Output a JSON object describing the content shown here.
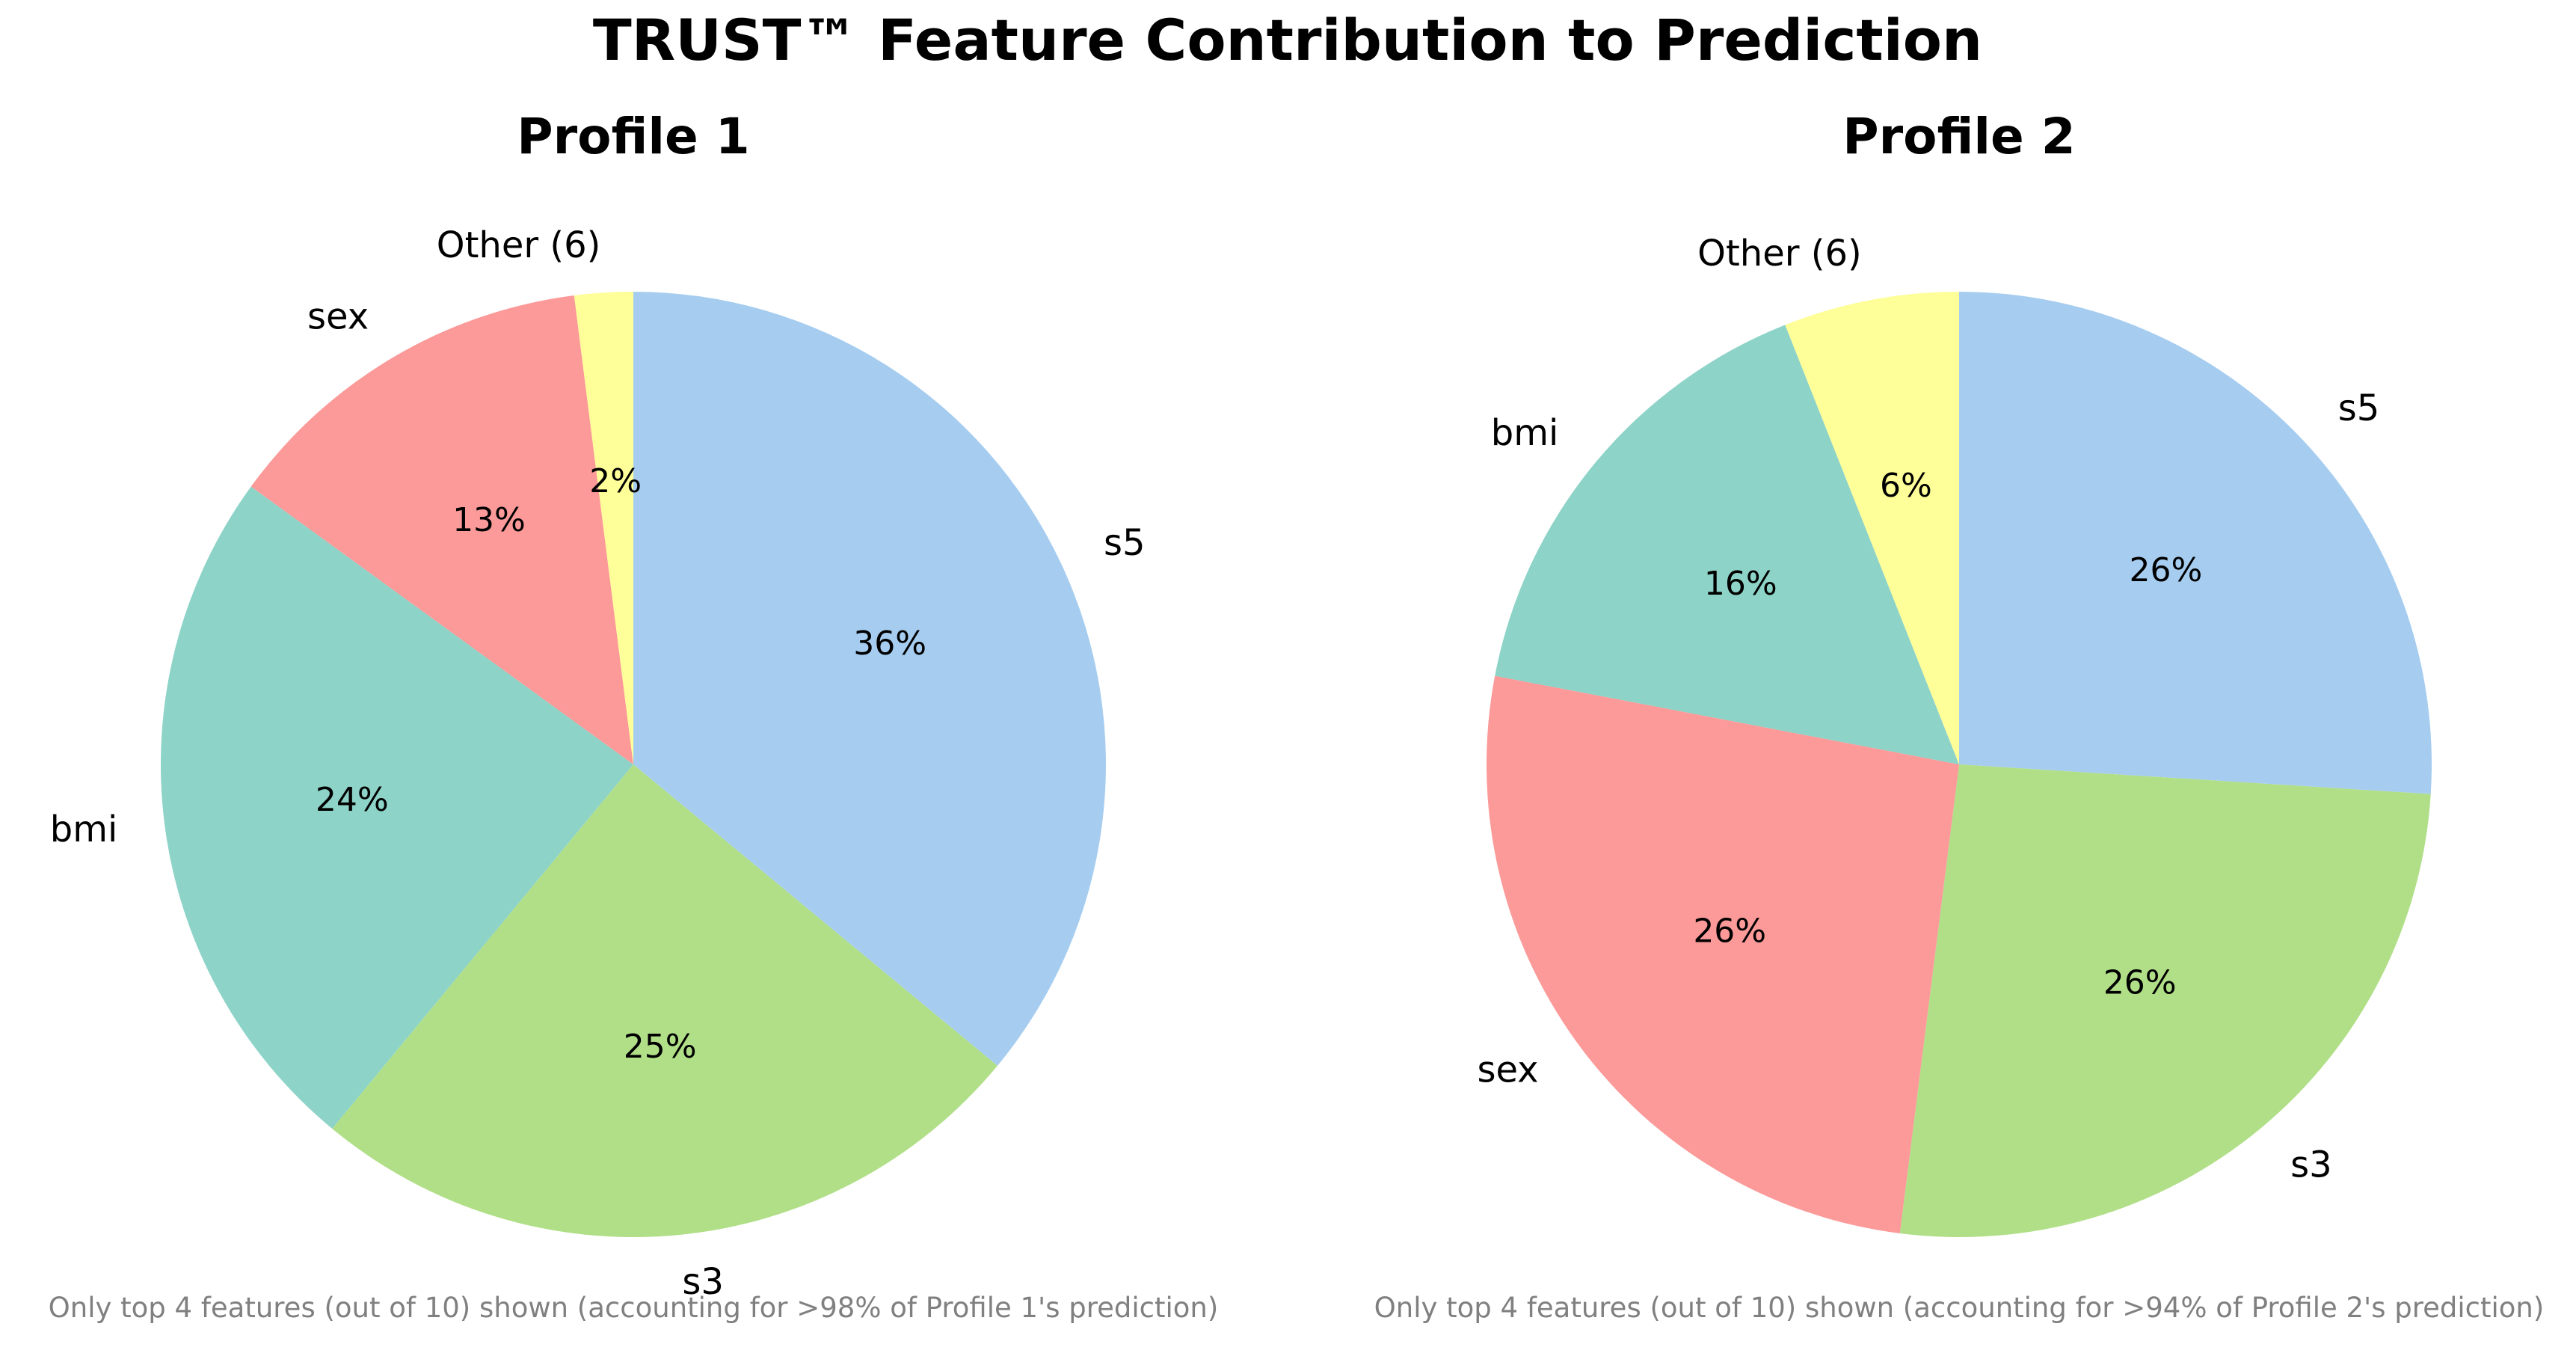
{
  "title": "TRUST™ Feature Contribution to Prediction",
  "chart_data": [
    {
      "type": "pie",
      "title": "Profile 1",
      "start_angle_deg": 90,
      "direction": "clockwise",
      "slices": [
        {
          "label": "s5",
          "value": 36,
          "pct_text": "36%",
          "color": "#a6cdf0"
        },
        {
          "label": "s3",
          "value": 25,
          "pct_text": "25%",
          "color": "#b1df88"
        },
        {
          "label": "bmi",
          "value": 24,
          "pct_text": "24%",
          "color": "#8dd3c7"
        },
        {
          "label": "sex",
          "value": 13,
          "pct_text": "13%",
          "color": "#fb9a99"
        },
        {
          "label": "Other (6)",
          "value": 2,
          "pct_text": "2%",
          "color": "#ffff99"
        }
      ],
      "footnote": "Only top 4 features (out of 10) shown (accounting for >98% of Profile 1's prediction)"
    },
    {
      "type": "pie",
      "title": "Profile 2",
      "start_angle_deg": 90,
      "direction": "clockwise",
      "slices": [
        {
          "label": "s5",
          "value": 26,
          "pct_text": "26%",
          "color": "#a6cdf0"
        },
        {
          "label": "s3",
          "value": 26,
          "pct_text": "26%",
          "color": "#b1df88"
        },
        {
          "label": "sex",
          "value": 26,
          "pct_text": "26%",
          "color": "#fb9a99"
        },
        {
          "label": "bmi",
          "value": 16,
          "pct_text": "16%",
          "color": "#8dd3c7"
        },
        {
          "label": "Other (6)",
          "value": 6,
          "pct_text": "6%",
          "color": "#ffff99"
        }
      ],
      "footnote": "Only top 4 features (out of 10) shown (accounting for >94% of Profile 2's prediction)"
    }
  ]
}
